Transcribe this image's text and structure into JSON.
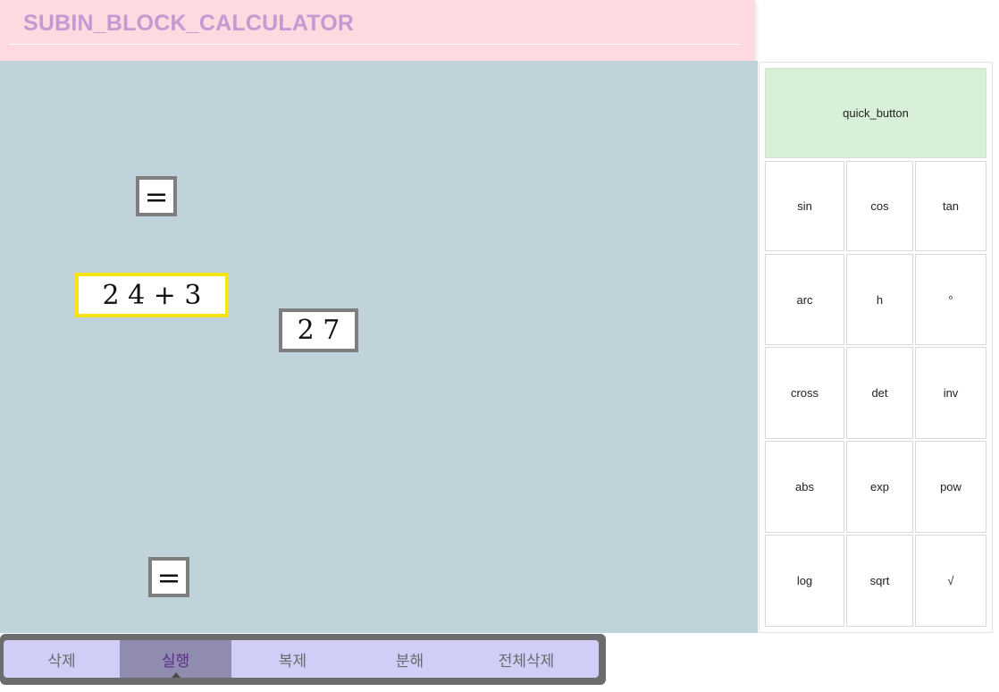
{
  "header": {
    "title": "SUBIN_BLOCK_CALCULATOR"
  },
  "canvas": {
    "blocks": [
      {
        "text": "=",
        "selected": false
      },
      {
        "text": "2 4 + 3",
        "selected": true
      },
      {
        "text": "2 7",
        "selected": false
      },
      {
        "text": "=",
        "selected": false
      }
    ]
  },
  "panel": {
    "quick_button": "quick_button",
    "functions": [
      [
        "sin",
        "cos",
        "tan"
      ],
      [
        "arc",
        "h",
        "°"
      ],
      [
        "cross",
        "det",
        "inv"
      ],
      [
        "abs",
        "exp",
        "pow"
      ],
      [
        "log",
        "sqrt",
        "√"
      ]
    ]
  },
  "toolbar": {
    "buttons": [
      "삭제",
      "실행",
      "복제",
      "분해",
      "전체삭제"
    ],
    "active": "실행"
  },
  "colors": {
    "header_bg": "#fdd9e0",
    "title": "#c49ad2",
    "canvas_bg": "#c0d3da",
    "block_border": "#7e7e7e",
    "selected_border": "#f5e318",
    "quick_bg": "#d8f0d8",
    "toolbar_bg": "#d0cdf6",
    "toolbar_active": "#8f8caf"
  }
}
